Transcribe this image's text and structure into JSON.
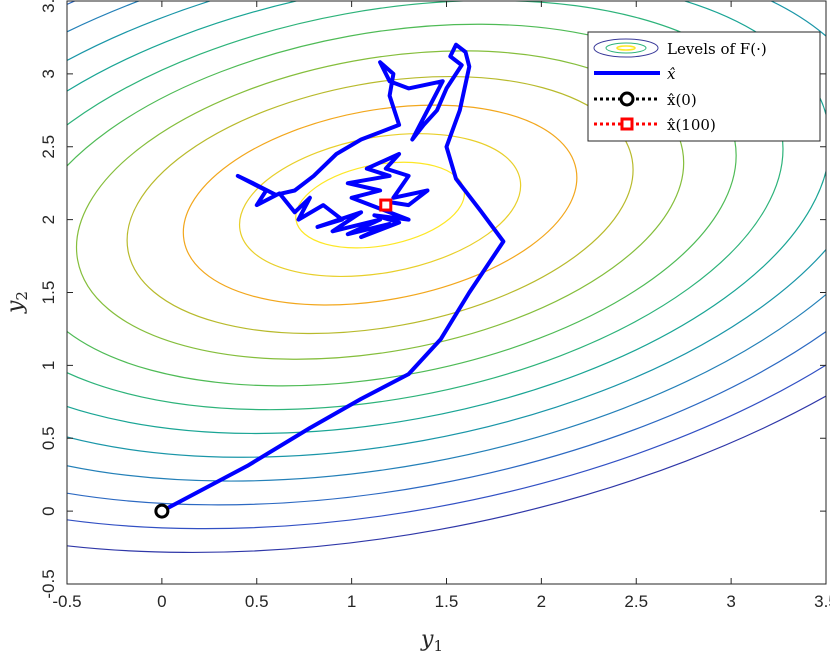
{
  "chart_data": {
    "type": "line",
    "title": "",
    "xlabel": "y",
    "xlabel_sub": "1",
    "ylabel": "y",
    "ylabel_sub": "2",
    "xlim": [
      -0.5,
      3.5
    ],
    "ylim": [
      -0.5,
      3.5
    ],
    "xticks": [
      -0.5,
      0,
      0.5,
      1,
      1.5,
      2,
      2.5,
      3,
      3.5
    ],
    "yticks": [
      -0.5,
      0,
      0.5,
      1,
      1.5,
      2,
      2.5,
      3,
      3.5
    ],
    "xtick_labels": [
      "-0.5",
      "0",
      "0.5",
      "1",
      "1.5",
      "2",
      "2.5",
      "3",
      "3.5"
    ],
    "ytick_labels": [
      "-0.5",
      "0",
      "0.5",
      "1",
      "1.5",
      "2",
      "2.5",
      "3",
      "3.5"
    ],
    "grid": false,
    "legend_position": "top-right",
    "contours": {
      "center": [
        1.15,
        2.1
      ],
      "levels": [
        0.45,
        0.75,
        1.05,
        1.35,
        1.62,
        1.9,
        2.15,
        2.4,
        2.65,
        2.9,
        3.15,
        3.4,
        3.65
      ],
      "colors": [
        "#fde725",
        "#e8cf2a",
        "#f2a71d",
        "#b8ba2c",
        "#85be3c",
        "#4fbb56",
        "#2db37a",
        "#1aa595",
        "#1a96a8",
        "#2480b8",
        "#2c69c2",
        "#3250c4",
        "#2f37a8"
      ]
    },
    "series": [
      {
        "name": "x̂",
        "color": "#0000ff",
        "points": [
          [
            0.0,
            0.0
          ],
          [
            0.45,
            0.31
          ],
          [
            0.78,
            0.57
          ],
          [
            1.05,
            0.77
          ],
          [
            1.3,
            0.94
          ],
          [
            1.47,
            1.18
          ],
          [
            1.62,
            1.5
          ],
          [
            1.8,
            1.85
          ],
          [
            1.68,
            2.06
          ],
          [
            1.55,
            2.28
          ],
          [
            1.5,
            2.5
          ],
          [
            1.57,
            2.75
          ],
          [
            1.62,
            3.05
          ],
          [
            1.6,
            3.15
          ],
          [
            1.55,
            3.2
          ],
          [
            1.52,
            3.12
          ],
          [
            1.58,
            3.06
          ],
          [
            1.5,
            2.9
          ],
          [
            1.45,
            2.75
          ],
          [
            1.38,
            2.65
          ],
          [
            1.32,
            2.55
          ],
          [
            1.4,
            2.75
          ],
          [
            1.48,
            2.95
          ],
          [
            1.3,
            2.9
          ],
          [
            1.2,
            2.95
          ],
          [
            1.15,
            3.08
          ],
          [
            1.22,
            3.0
          ],
          [
            1.2,
            2.85
          ],
          [
            1.25,
            2.65
          ],
          [
            1.05,
            2.55
          ],
          [
            0.92,
            2.45
          ],
          [
            0.8,
            2.3
          ],
          [
            0.7,
            2.2
          ],
          [
            0.6,
            2.17
          ],
          [
            0.48,
            2.25
          ],
          [
            0.4,
            2.3
          ],
          [
            0.55,
            2.2
          ],
          [
            0.5,
            2.1
          ],
          [
            0.62,
            2.18
          ],
          [
            0.7,
            2.05
          ],
          [
            0.78,
            2.15
          ],
          [
            0.72,
            2.0
          ],
          [
            0.85,
            2.1
          ],
          [
            0.95,
            2.0
          ],
          [
            0.82,
            1.95
          ],
          [
            1.05,
            2.05
          ],
          [
            0.9,
            1.92
          ],
          [
            1.15,
            2.0
          ],
          [
            0.98,
            1.9
          ],
          [
            1.2,
            1.97
          ],
          [
            1.05,
            1.88
          ],
          [
            1.25,
            1.98
          ],
          [
            1.12,
            2.03
          ],
          [
            1.3,
            2.0
          ],
          [
            1.0,
            2.15
          ],
          [
            1.15,
            2.2
          ],
          [
            0.98,
            2.25
          ],
          [
            1.2,
            2.3
          ],
          [
            1.08,
            2.35
          ],
          [
            1.25,
            2.45
          ],
          [
            1.18,
            2.35
          ],
          [
            1.3,
            2.3
          ],
          [
            1.22,
            2.15
          ],
          [
            1.4,
            2.2
          ],
          [
            1.3,
            2.1
          ],
          [
            1.2,
            2.12
          ],
          [
            1.18,
            2.1
          ]
        ]
      },
      {
        "name": "x̂(0)",
        "color": "#000000",
        "marker": "circle",
        "points": [
          [
            0.0,
            0.0
          ]
        ]
      },
      {
        "name": "x̂(100)",
        "color": "#ff0000",
        "marker": "square",
        "points": [
          [
            1.18,
            2.1
          ]
        ]
      }
    ],
    "legend": {
      "entries": [
        "Levels of F(·)",
        "x̂",
        "x̂(0)",
        "x̂(100)"
      ]
    }
  }
}
